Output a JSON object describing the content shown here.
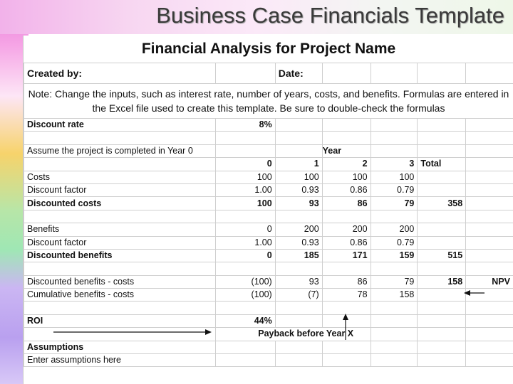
{
  "slide": {
    "title": "Business Case Financials Template"
  },
  "sheet": {
    "title": "Financial Analysis for Project Name",
    "created_by_label": "Created by:",
    "date_label": "Date:",
    "note": "Note: Change the inputs, such as interest rate, number of years, costs, and benefits. Formulas are entered in the Excel file used to create this template. Be sure to double-check the formulas",
    "discount_rate_label": "Discount rate",
    "discount_rate_value": "8%",
    "assume_label": "Assume the project is completed in Year 0",
    "year_label": "Year",
    "years": [
      "0",
      "1",
      "2",
      "3"
    ],
    "total_label": "Total",
    "costs": {
      "label": "Costs",
      "values": [
        "100",
        "100",
        "100",
        "100"
      ]
    },
    "discount_factor_costs": {
      "label": "Discount factor",
      "values": [
        "1.00",
        "0.93",
        "0.86",
        "0.79"
      ]
    },
    "discounted_costs": {
      "label": "Discounted costs",
      "values": [
        "100",
        "93",
        "86",
        "79"
      ],
      "total": "358"
    },
    "benefits": {
      "label": "Benefits",
      "values": [
        "0",
        "200",
        "200",
        "200"
      ]
    },
    "discount_factor_benefits": {
      "label": "Discount factor",
      "values": [
        "1.00",
        "0.93",
        "0.86",
        "0.79"
      ]
    },
    "discounted_benefits": {
      "label": "Discounted benefits",
      "values": [
        "0",
        "185",
        "171",
        "159"
      ],
      "total": "515"
    },
    "net": {
      "label": "Discounted benefits - costs",
      "values": [
        "(100)",
        "93",
        "86",
        "79"
      ],
      "total": "158"
    },
    "npv_label": "NPV",
    "cumulative": {
      "label": "Cumulative benefits - costs",
      "values": [
        "(100)",
        "(7)",
        "78",
        "158"
      ]
    },
    "roi_label": "ROI",
    "roi_value": "44%",
    "payback_label": "Payback before Year X",
    "assumptions_label": "Assumptions",
    "assumptions_placeholder": "Enter assumptions here"
  }
}
